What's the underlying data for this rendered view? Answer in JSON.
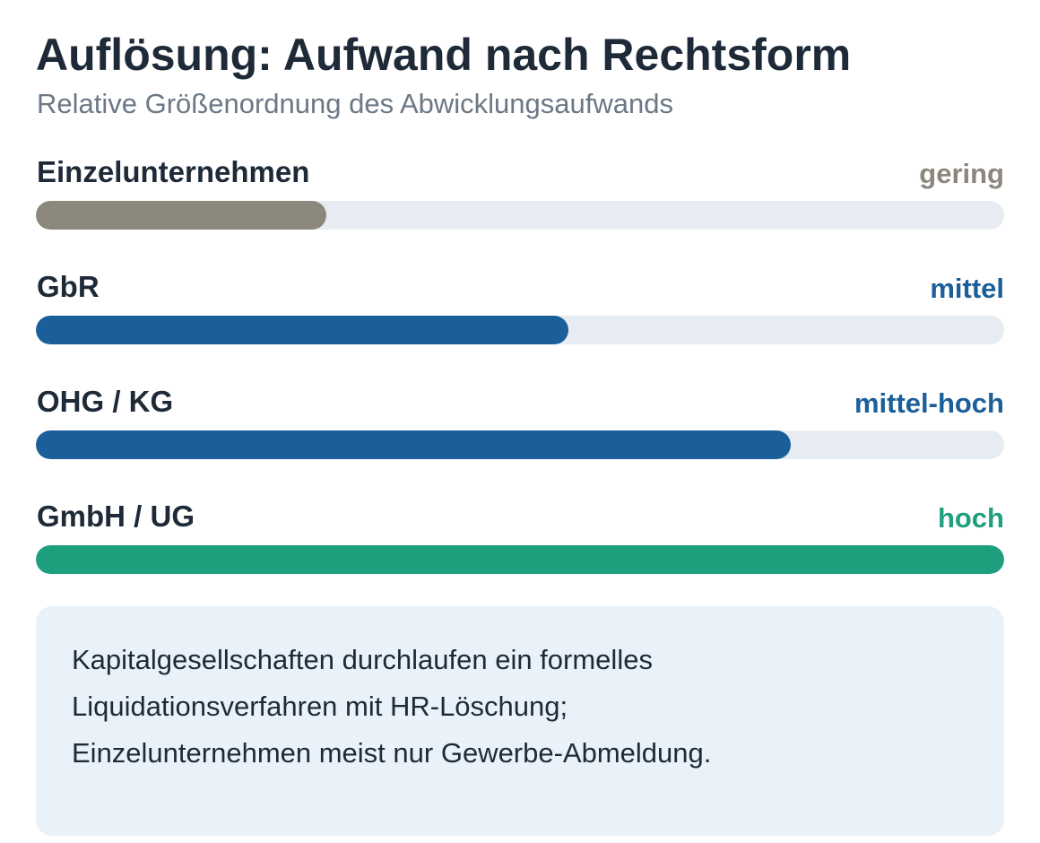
{
  "header": {
    "title": "Auflösung: Aufwand nach Rechtsform",
    "subtitle": "Relative Größenordnung des Abwicklungsaufwands"
  },
  "chart_data": {
    "type": "bar",
    "orientation": "horizontal",
    "title": "Auflösung: Aufwand nach Rechtsform",
    "subtitle": "Relative Größenordnung des Abwicklungsaufwands",
    "categories": [
      "Einzelunternehmen",
      "GbR",
      "OHG / KG",
      "GmbH / UG"
    ],
    "levels": [
      "gering",
      "mittel",
      "mittel-hoch",
      "hoch"
    ],
    "values": [
      30,
      55,
      78,
      100
    ],
    "xlim": [
      0,
      100
    ],
    "colors": [
      "#8c877c",
      "#1a5f99",
      "#1a5f99",
      "#1ea07e"
    ],
    "track_color": "#e6ecf1"
  },
  "note": {
    "text": "Kapitalgesellschaften durchlaufen ein formelles Liquidationsverfahren mit HR-Löschung; Einzelunternehmen meist nur Gewerbe-Abmeldung."
  }
}
